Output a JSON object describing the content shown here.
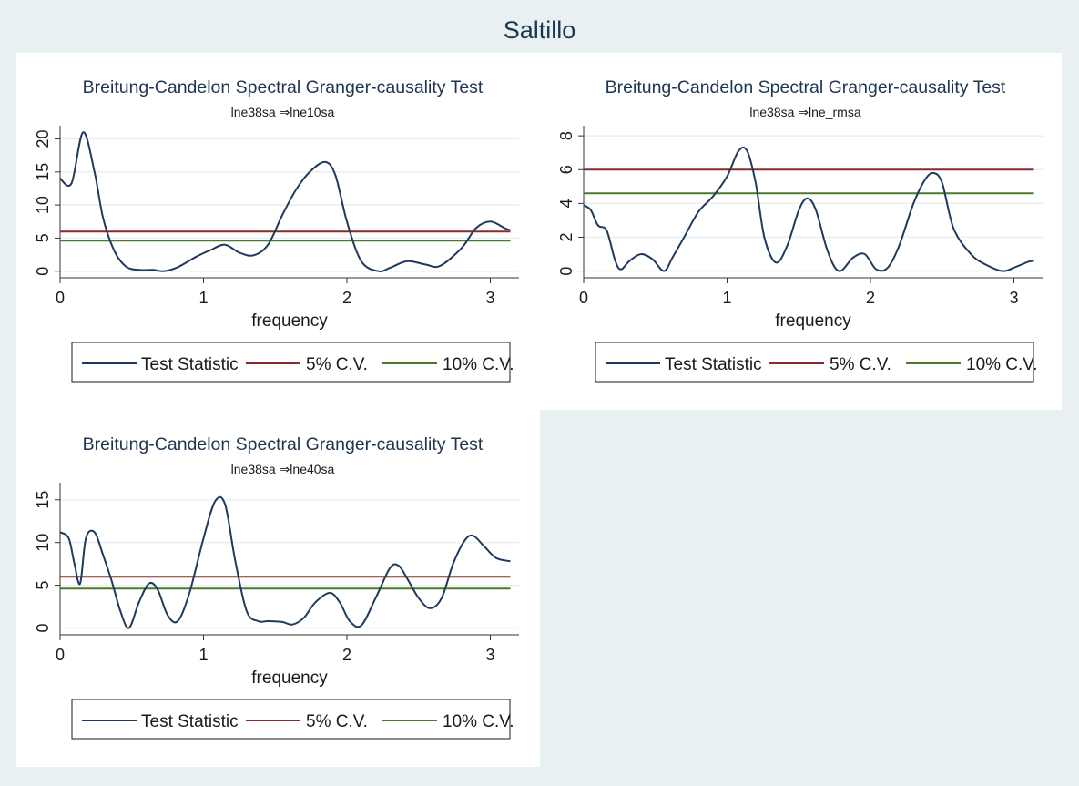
{
  "overall_title": "Saltillo",
  "colors": {
    "background": "#e8f0f2",
    "panel": "#ffffff",
    "title": "#1e3550",
    "grid": "#e6eef0",
    "test_statistic": "#1f3a5c",
    "cv5": "#8b2a2a",
    "cv10": "#4b7a2e"
  },
  "chart_data": [
    {
      "type": "line",
      "title": "Breitung-Candelon Spectral Granger-causality Test",
      "subtitle": "lne38sa ⇒lne10sa",
      "xlabel": "frequency",
      "ylabel": "",
      "xlim": [
        0,
        3.2
      ],
      "ylim": [
        -1,
        22
      ],
      "xticks": [
        0,
        1,
        2,
        3
      ],
      "yticks": [
        0,
        5,
        10,
        15,
        20
      ],
      "grid": true,
      "legend_position": "bottom",
      "series": [
        {
          "name": "Test Statistic",
          "x": [
            0,
            0.08,
            0.16,
            0.24,
            0.3,
            0.38,
            0.46,
            0.55,
            0.65,
            0.72,
            0.82,
            0.95,
            1.05,
            1.15,
            1.25,
            1.35,
            1.45,
            1.55,
            1.65,
            1.75,
            1.85,
            1.92,
            2.0,
            2.1,
            2.22,
            2.3,
            2.42,
            2.55,
            2.65,
            2.8,
            2.9,
            3.0,
            3.1,
            3.14
          ],
          "y": [
            14,
            13.3,
            21,
            15,
            8,
            3,
            0.7,
            0.2,
            0.2,
            0,
            0.6,
            2.2,
            3.2,
            4,
            2.8,
            2.4,
            4,
            8.5,
            12.5,
            15.2,
            16.5,
            14.5,
            7.5,
            1.5,
            0,
            0.5,
            1.5,
            1,
            0.8,
            3.5,
            6.5,
            7.5,
            6.5,
            6.2
          ]
        },
        {
          "name": "5% C.V.",
          "x": [
            0,
            3.14
          ],
          "y": [
            6,
            6
          ]
        },
        {
          "name": "10% C.V.",
          "x": [
            0,
            3.14
          ],
          "y": [
            4.6,
            4.6
          ]
        }
      ],
      "legend": [
        "Test Statistic",
        "5% C.V.",
        "10% C.V."
      ]
    },
    {
      "type": "line",
      "title": "Breitung-Candelon Spectral Granger-causality Test",
      "subtitle": "lne38sa ⇒lne_rmsa",
      "xlabel": "frequency",
      "ylabel": "",
      "xlim": [
        0,
        3.2
      ],
      "ylim": [
        -0.4,
        8.6
      ],
      "xticks": [
        0,
        1,
        2,
        3
      ],
      "yticks": [
        0,
        2,
        4,
        6,
        8
      ],
      "grid": true,
      "legend_position": "bottom",
      "series": [
        {
          "name": "Test Statistic",
          "x": [
            0,
            0.05,
            0.1,
            0.16,
            0.22,
            0.26,
            0.32,
            0.4,
            0.48,
            0.56,
            0.62,
            0.7,
            0.8,
            0.9,
            1.0,
            1.08,
            1.14,
            1.2,
            1.26,
            1.34,
            1.42,
            1.5,
            1.56,
            1.62,
            1.7,
            1.78,
            1.88,
            1.96,
            2.04,
            2.12,
            2.2,
            2.3,
            2.38,
            2.44,
            2.5,
            2.58,
            2.7,
            2.8,
            2.92,
            3.0,
            3.1,
            3.14
          ],
          "y": [
            3.9,
            3.6,
            2.7,
            2.4,
            0.6,
            0.1,
            0.6,
            1,
            0.7,
            0,
            0.8,
            2,
            3.5,
            4.4,
            5.6,
            7.1,
            7.1,
            5.2,
            2,
            0.5,
            1.5,
            3.6,
            4.3,
            3.6,
            1.2,
            0,
            0.8,
            1,
            0.1,
            0.2,
            1.5,
            4,
            5.4,
            5.8,
            5.2,
            2.5,
            1,
            0.4,
            0,
            0.2,
            0.55,
            0.6
          ]
        },
        {
          "name": "5% C.V.",
          "x": [
            0,
            3.14
          ],
          "y": [
            6,
            6
          ]
        },
        {
          "name": "10% C.V.",
          "x": [
            0,
            3.14
          ],
          "y": [
            4.6,
            4.6
          ]
        }
      ],
      "legend": [
        "Test Statistic",
        "5% C.V.",
        "10% C.V."
      ]
    },
    {
      "type": "line",
      "title": "Breitung-Candelon Spectral Granger-causality Test",
      "subtitle": "lne38sa ⇒lne40sa",
      "xlabel": "frequency",
      "ylabel": "",
      "xlim": [
        0,
        3.2
      ],
      "ylim": [
        -0.8,
        17
      ],
      "xticks": [
        0,
        1,
        2,
        3
      ],
      "yticks": [
        0,
        5,
        10,
        15
      ],
      "grid": true,
      "legend_position": "bottom",
      "series": [
        {
          "name": "Test Statistic",
          "x": [
            0,
            0.06,
            0.1,
            0.14,
            0.18,
            0.24,
            0.3,
            0.36,
            0.42,
            0.48,
            0.55,
            0.62,
            0.68,
            0.75,
            0.82,
            0.9,
            1.0,
            1.08,
            1.15,
            1.22,
            1.3,
            1.38,
            1.45,
            1.55,
            1.62,
            1.7,
            1.78,
            1.88,
            1.95,
            2.02,
            2.1,
            2.2,
            2.3,
            2.36,
            2.42,
            2.5,
            2.58,
            2.66,
            2.74,
            2.82,
            2.88,
            2.96,
            3.04,
            3.14
          ],
          "y": [
            11.2,
            10.5,
            7.5,
            5.2,
            10.5,
            11.2,
            8.5,
            5.5,
            2,
            0,
            3,
            5.2,
            4.5,
            1.5,
            0.8,
            4,
            10.5,
            14.8,
            14.5,
            8,
            2,
            0.8,
            0.8,
            0.7,
            0.4,
            1.2,
            3,
            4.1,
            3,
            0.8,
            0.3,
            3.5,
            7,
            7.3,
            5.8,
            3.5,
            2.3,
            3.5,
            7.5,
            10.2,
            10.8,
            9.5,
            8.2,
            7.8
          ]
        },
        {
          "name": "5% C.V.",
          "x": [
            0,
            3.14
          ],
          "y": [
            6,
            6
          ]
        },
        {
          "name": "10% C.V.",
          "x": [
            0,
            3.14
          ],
          "y": [
            4.6,
            4.6
          ]
        }
      ],
      "legend": [
        "Test Statistic",
        "5% C.V.",
        "10% C.V."
      ]
    }
  ]
}
